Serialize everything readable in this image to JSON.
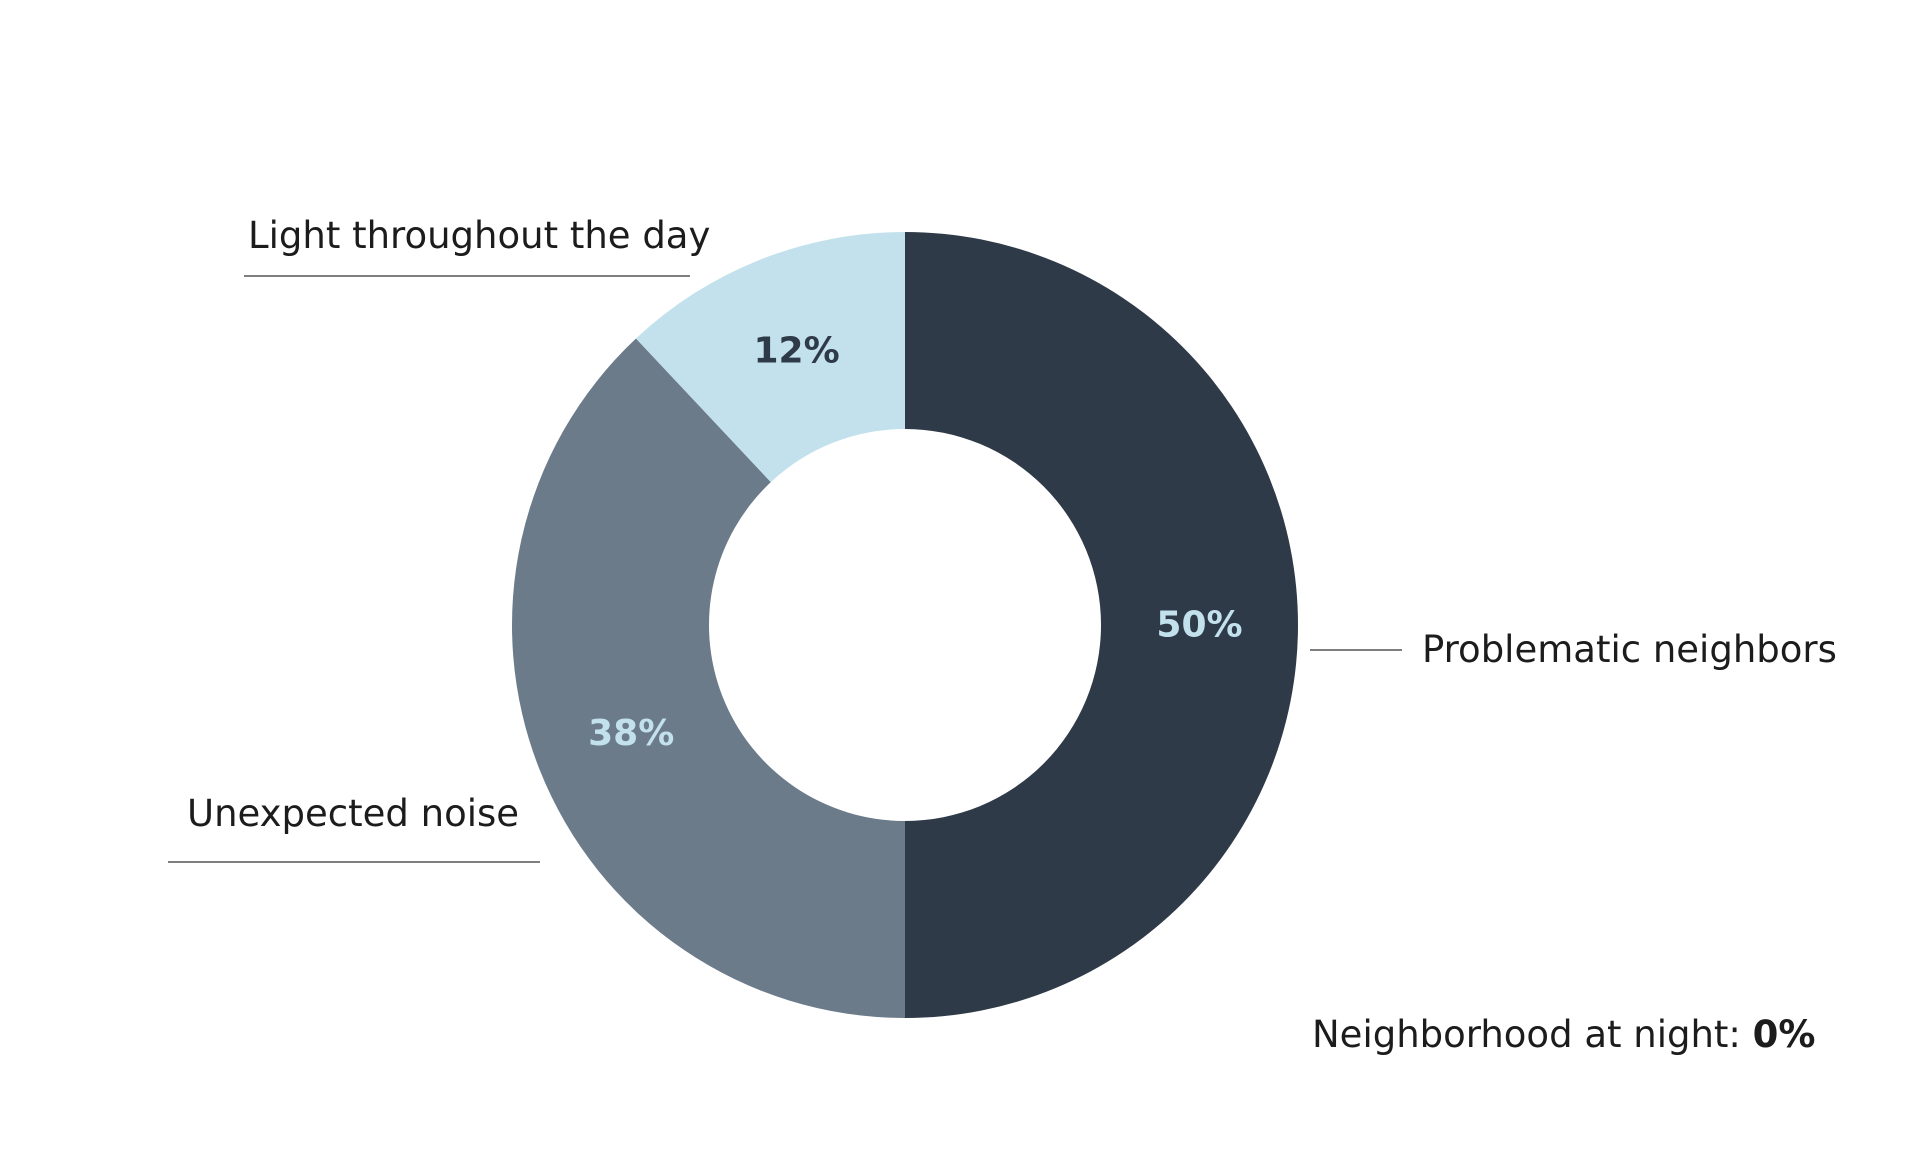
{
  "chart_data": {
    "type": "pie",
    "donut": true,
    "title": "",
    "categories": [
      "Problematic neighbors",
      "Unexpected noise",
      "Light throughout the day"
    ],
    "values": [
      50,
      38,
      12
    ],
    "value_labels": [
      "50%",
      "38%",
      "12%"
    ],
    "colors": [
      "#2f3a48",
      "#6b7b8a",
      "#c2e1ec"
    ],
    "label_colors": [
      "#c2e1ec",
      "#c2e1ec",
      "#2f3a48"
    ],
    "footnote": {
      "label": "Neighborhood at night: ",
      "value": "0%"
    },
    "legend": "callout"
  }
}
